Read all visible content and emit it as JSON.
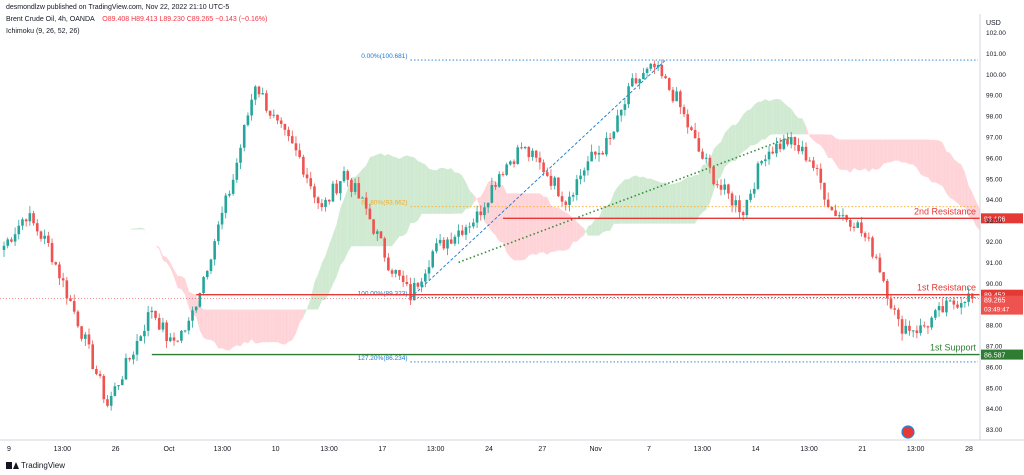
{
  "header": {
    "publisher": "desmondlzw published on TradingView.com, Nov 22, 2022 21:10 UTC-5",
    "symbol": "Brent Crude Oil, 4h, OANDA",
    "ohlc": "O89.408  H89.413  L89.230  C89.265  −0.143 (−0.16%)",
    "indicator": "Ichimoku (9, 26, 52, 26)"
  },
  "footer": {
    "brand": "TradingView"
  },
  "colors": {
    "bull": "#26a69a",
    "bear": "#ef5350",
    "cloud_bull": "#c8e6c9",
    "cloud_bear": "#ffcdd2",
    "resistance": "#e53935",
    "support": "#2e7d32",
    "fib": "#1976d2",
    "fib_mid": "#f9a825",
    "trend": "#388e3c"
  },
  "chart_data": {
    "type": "candlestick",
    "title": "",
    "currency": "USD",
    "ylim": [
      82.5,
      102.5
    ],
    "y_ticks": [
      "102.00",
      "101.00",
      "100.00",
      "99.00",
      "98.00",
      "97.00",
      "96.00",
      "95.00",
      "94.00",
      "93.00",
      "92.00",
      "91.00",
      "90.00",
      "89.00",
      "88.00",
      "87.00",
      "86.00",
      "85.00",
      "84.00",
      "83.00"
    ],
    "x_ticks": [
      "9",
      "13:00",
      "26",
      "Oct",
      "13:00",
      "10",
      "13:00",
      "17",
      "13:00",
      "24",
      "27",
      "Nov",
      "7",
      "13:00",
      "14",
      "13:00",
      "21",
      "13:00",
      "28"
    ],
    "last_price": {
      "value": "89.265",
      "countdown": "03:49:47"
    },
    "ohlc_waypoints": [
      {
        "i": 0,
        "p": 91.8
      },
      {
        "i": 6,
        "p": 93.3
      },
      {
        "i": 12,
        "p": 91.8
      },
      {
        "i": 20,
        "p": 88.2
      },
      {
        "i": 28,
        "p": 84.2
      },
      {
        "i": 34,
        "p": 86.4
      },
      {
        "i": 40,
        "p": 88.8
      },
      {
        "i": 45,
        "p": 87.1
      },
      {
        "i": 50,
        "p": 88.0
      },
      {
        "i": 56,
        "p": 91.5
      },
      {
        "i": 62,
        "p": 95.0
      },
      {
        "i": 68,
        "p": 99.6
      },
      {
        "i": 74,
        "p": 97.5
      },
      {
        "i": 80,
        "p": 96.0
      },
      {
        "i": 86,
        "p": 93.5
      },
      {
        "i": 92,
        "p": 95.3
      },
      {
        "i": 98,
        "p": 93.5
      },
      {
        "i": 104,
        "p": 91.0
      },
      {
        "i": 110,
        "p": 89.4
      },
      {
        "i": 116,
        "p": 91.5
      },
      {
        "i": 122,
        "p": 92.4
      },
      {
        "i": 128,
        "p": 93.2
      },
      {
        "i": 134,
        "p": 95.3
      },
      {
        "i": 140,
        "p": 96.5
      },
      {
        "i": 146,
        "p": 95.5
      },
      {
        "i": 152,
        "p": 94.0
      },
      {
        "i": 158,
        "p": 95.8
      },
      {
        "i": 164,
        "p": 96.8
      },
      {
        "i": 170,
        "p": 99.5
      },
      {
        "i": 176,
        "p": 100.3
      },
      {
        "i": 182,
        "p": 98.8
      },
      {
        "i": 188,
        "p": 96.3
      },
      {
        "i": 194,
        "p": 94.5
      },
      {
        "i": 200,
        "p": 93.5
      },
      {
        "i": 206,
        "p": 96.3
      },
      {
        "i": 212,
        "p": 96.8
      },
      {
        "i": 218,
        "p": 96.0
      },
      {
        "i": 224,
        "p": 93.5
      },
      {
        "i": 230,
        "p": 93.0
      },
      {
        "i": 236,
        "p": 91.3
      },
      {
        "i": 242,
        "p": 88.0
      },
      {
        "i": 248,
        "p": 87.8
      },
      {
        "i": 254,
        "p": 88.7
      },
      {
        "i": 260,
        "p": 89.4
      },
      {
        "i": 262,
        "p": 89.265
      }
    ],
    "levels": [
      {
        "name": "2nd Resistance",
        "value": 93.106,
        "label": "93.106",
        "kind": "resistance"
      },
      {
        "name": "1st Resistance",
        "value": 89.452,
        "label": "89.452",
        "kind": "resistance"
      },
      {
        "name": "1st Support",
        "value": 86.587,
        "label": "86.587",
        "kind": "support"
      }
    ],
    "fib_levels": [
      {
        "label": "0.00%(100.681)",
        "value": 100.681
      },
      {
        "label": "61.80%(93.662)",
        "value": 93.662
      },
      {
        "label": "100.00%(89.323)",
        "value": 89.323
      },
      {
        "label": "127.20%(86.234)",
        "value": 86.234
      }
    ],
    "trendlines": [
      {
        "style": "dashed",
        "from": {
          "i": 110,
          "p": 89.3
        },
        "to": {
          "i": 179,
          "p": 100.68
        }
      },
      {
        "style": "dotted",
        "from": {
          "i": 123,
          "p": 91.0
        },
        "to": {
          "i": 213,
          "p": 97.0
        }
      }
    ]
  }
}
